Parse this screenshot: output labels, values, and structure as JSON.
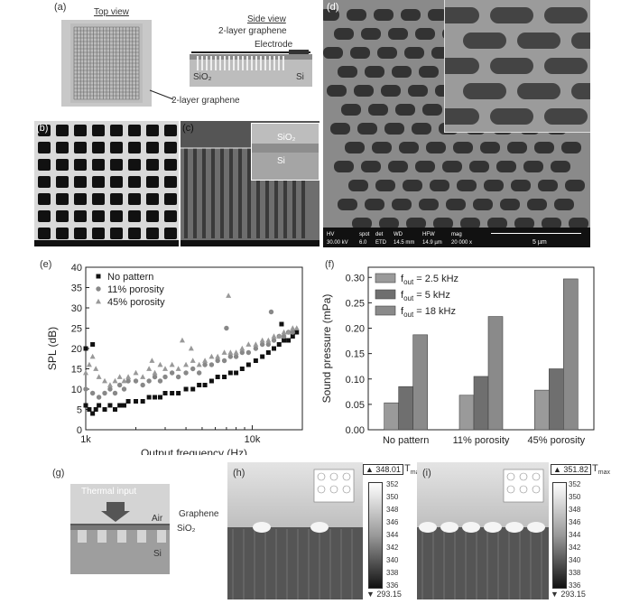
{
  "panels": {
    "a": {
      "label": "(a)",
      "top_view_title": "Top view",
      "side_view_title": "Side view",
      "layer_label": "2-layer graphene",
      "electrode_label": "Electrode",
      "sio2_label": "SiO₂",
      "si_label": "Si",
      "bottom_label": "2-layer graphene"
    },
    "b": {
      "label": "(b)"
    },
    "c": {
      "label": "(c)",
      "sio2_label": "SiO₂",
      "si_label": "Si"
    },
    "d": {
      "label": "(d)",
      "info_headers": [
        "HV",
        "spot",
        "det",
        "WD",
        "HFW",
        "mag"
      ],
      "info_values": [
        "30.00 kV",
        "6.0",
        "ETD",
        "14.5 mm",
        "14.9 µm",
        "20 000 x"
      ],
      "scale_label": "5 µm"
    },
    "g": {
      "label": "(g)",
      "thermal_input": "Thermal input",
      "air": "Air",
      "graphene": "Graphene",
      "sio2": "SiO₂",
      "si": "Si"
    },
    "h": {
      "label": "(h)",
      "tmax_value": "▲ 348.01",
      "tmax_label": "T",
      "tmax_sub": "max",
      "tmin_value": "▼ 293.15",
      "colorbar_ticks": [
        "352",
        "350",
        "348",
        "346",
        "344",
        "342",
        "340",
        "338",
        "336"
      ]
    },
    "i": {
      "label": "(i)",
      "tmax_value": "▲ 351.82",
      "tmax_label": "T",
      "tmax_sub": "max",
      "tmin_value": "▼ 293.15",
      "colorbar_ticks": [
        "352",
        "350",
        "348",
        "346",
        "344",
        "342",
        "340",
        "338",
        "336"
      ]
    }
  },
  "colors": {
    "square_marker": "#111111",
    "circle_marker": "#888888",
    "triangle_marker": "#999999"
  },
  "chart_data": [
    {
      "panel": "(e)",
      "type": "scatter",
      "xlabel": "Output frequency (Hz)",
      "ylabel": "SPL (dB)",
      "x_scale": "log",
      "xlim": [
        1000,
        20000
      ],
      "ylim": [
        0,
        40
      ],
      "x_ticks": [
        "1k",
        "10k"
      ],
      "y_ticks": [
        "0",
        "5",
        "10",
        "15",
        "20",
        "25",
        "30",
        "35",
        "40"
      ],
      "legend_position": "top-left",
      "series": [
        {
          "name": "No pattern",
          "marker": "square",
          "points": [
            [
              1000,
              6
            ],
            [
              1050,
              5
            ],
            [
              1100,
              4
            ],
            [
              1150,
              5
            ],
            [
              1200,
              6
            ],
            [
              1300,
              5
            ],
            [
              1400,
              6
            ],
            [
              1500,
              5
            ],
            [
              1600,
              6
            ],
            [
              1700,
              6
            ],
            [
              1800,
              7
            ],
            [
              2000,
              7
            ],
            [
              2200,
              7
            ],
            [
              2400,
              8
            ],
            [
              2600,
              8
            ],
            [
              2800,
              8
            ],
            [
              3000,
              9
            ],
            [
              3300,
              9
            ],
            [
              3600,
              9
            ],
            [
              4000,
              10
            ],
            [
              4400,
              10
            ],
            [
              4800,
              11
            ],
            [
              5200,
              11
            ],
            [
              5700,
              12
            ],
            [
              6200,
              13
            ],
            [
              6800,
              13
            ],
            [
              7400,
              14
            ],
            [
              8000,
              14
            ],
            [
              8700,
              15
            ],
            [
              9500,
              16
            ],
            [
              10500,
              17
            ],
            [
              11500,
              18
            ],
            [
              12500,
              19
            ],
            [
              13500,
              20
            ],
            [
              14500,
              21
            ],
            [
              15500,
              22
            ],
            [
              16500,
              22
            ],
            [
              17500,
              23
            ],
            [
              18500,
              24
            ],
            [
              1000,
              20
            ],
            [
              1100,
              21
            ],
            [
              15000,
              26
            ]
          ]
        },
        {
          "name": "11% porosity",
          "marker": "circle",
          "points": [
            [
              1000,
              10
            ],
            [
              1100,
              9
            ],
            [
              1200,
              8
            ],
            [
              1300,
              9
            ],
            [
              1400,
              10
            ],
            [
              1500,
              9
            ],
            [
              1600,
              11
            ],
            [
              1700,
              10
            ],
            [
              1800,
              12
            ],
            [
              2000,
              12
            ],
            [
              2200,
              11
            ],
            [
              2400,
              12
            ],
            [
              2600,
              13
            ],
            [
              2800,
              12
            ],
            [
              3000,
              13
            ],
            [
              3300,
              14
            ],
            [
              3600,
              13
            ],
            [
              4000,
              14
            ],
            [
              4400,
              15
            ],
            [
              4800,
              14
            ],
            [
              5200,
              16
            ],
            [
              5700,
              16
            ],
            [
              6200,
              17
            ],
            [
              6800,
              17
            ],
            [
              7400,
              18
            ],
            [
              8000,
              18
            ],
            [
              8700,
              19
            ],
            [
              9500,
              19
            ],
            [
              10500,
              20
            ],
            [
              11500,
              21
            ],
            [
              12500,
              21
            ],
            [
              13500,
              22
            ],
            [
              14500,
              23
            ],
            [
              15500,
              23
            ],
            [
              16500,
              24
            ],
            [
              17500,
              24
            ],
            [
              7000,
              25
            ],
            [
              13000,
              29
            ]
          ]
        },
        {
          "name": "45% porosity",
          "marker": "triangle",
          "points": [
            [
              1000,
              14
            ],
            [
              1050,
              16
            ],
            [
              1100,
              18
            ],
            [
              1150,
              15
            ],
            [
              1200,
              13
            ],
            [
              1300,
              12
            ],
            [
              1400,
              11
            ],
            [
              1500,
              12
            ],
            [
              1600,
              13
            ],
            [
              1700,
              12
            ],
            [
              1800,
              13
            ],
            [
              2000,
              14
            ],
            [
              2200,
              13
            ],
            [
              2400,
              15
            ],
            [
              2600,
              14
            ],
            [
              2800,
              16
            ],
            [
              3000,
              15
            ],
            [
              3300,
              16
            ],
            [
              3600,
              15
            ],
            [
              4000,
              16
            ],
            [
              4400,
              17
            ],
            [
              4800,
              16
            ],
            [
              5200,
              17
            ],
            [
              5700,
              18
            ],
            [
              6200,
              18
            ],
            [
              6800,
              19
            ],
            [
              7400,
              19
            ],
            [
              8000,
              19
            ],
            [
              8700,
              20
            ],
            [
              9500,
              21
            ],
            [
              10500,
              21
            ],
            [
              11500,
              22
            ],
            [
              12500,
              22
            ],
            [
              13500,
              23
            ],
            [
              14500,
              23
            ],
            [
              15500,
              24
            ],
            [
              16500,
              24
            ],
            [
              17500,
              25
            ],
            [
              18500,
              25
            ],
            [
              3800,
              22
            ],
            [
              4300,
              20
            ],
            [
              7200,
              33
            ],
            [
              2500,
              17
            ]
          ]
        }
      ]
    },
    {
      "panel": "(f)",
      "type": "bar",
      "ylabel": "Sound pressure (mPa)",
      "categories": [
        "No pattern",
        "11% porosity",
        "45% porosity"
      ],
      "ylim": [
        0,
        0.32
      ],
      "y_ticks": [
        "0.00",
        "0.05",
        "0.10",
        "0.15",
        "0.20",
        "0.25",
        "0.30"
      ],
      "legend_position": "top-left",
      "series": [
        {
          "name": "f",
          "sub": "out",
          "suffix": " = 2.5 kHz",
          "values": [
            0.053,
            0.068,
            0.078
          ]
        },
        {
          "name": "f",
          "sub": "out",
          "suffix": " = 5 kHz",
          "values": [
            0.085,
            0.105,
            0.12
          ]
        },
        {
          "name": "f",
          "sub": "out",
          "suffix": " = 18 kHz",
          "values": [
            0.187,
            0.223,
            0.297
          ]
        }
      ]
    }
  ]
}
